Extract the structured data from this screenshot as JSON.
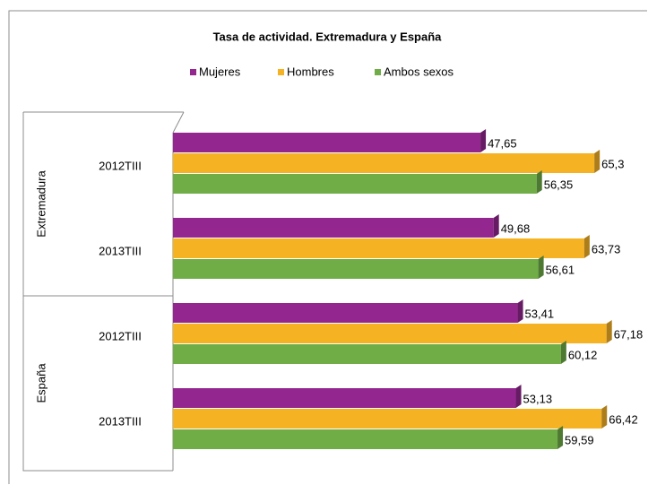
{
  "chart_data": {
    "type": "bar",
    "orientation": "horizontal",
    "title": "Tasa de actividad. Extremadura y España",
    "groups": [
      {
        "name": "Extremadura",
        "categories": [
          "2012TIII",
          "2013TIII"
        ]
      },
      {
        "name": "España",
        "categories": [
          "2012TIII",
          "2013TIII"
        ]
      }
    ],
    "series": [
      {
        "name": "Mujeres",
        "color": "#93278f",
        "values": [
          47.65,
          49.68,
          53.41,
          53.13
        ],
        "value_labels": [
          "47,65",
          "49,68",
          "53,41",
          "53,13"
        ]
      },
      {
        "name": "Hombres",
        "color": "#f5b323",
        "values": [
          65.3,
          63.73,
          67.18,
          66.42
        ],
        "value_labels": [
          "65,3",
          "63,73",
          "67,18",
          "66,42"
        ]
      },
      {
        "name": "Ambos sexos",
        "color": "#70ad47",
        "values": [
          56.35,
          56.61,
          60.12,
          59.59
        ],
        "value_labels": [
          "56,35",
          "56,61",
          "60,12",
          "59,59"
        ]
      }
    ],
    "legend": "top"
  }
}
